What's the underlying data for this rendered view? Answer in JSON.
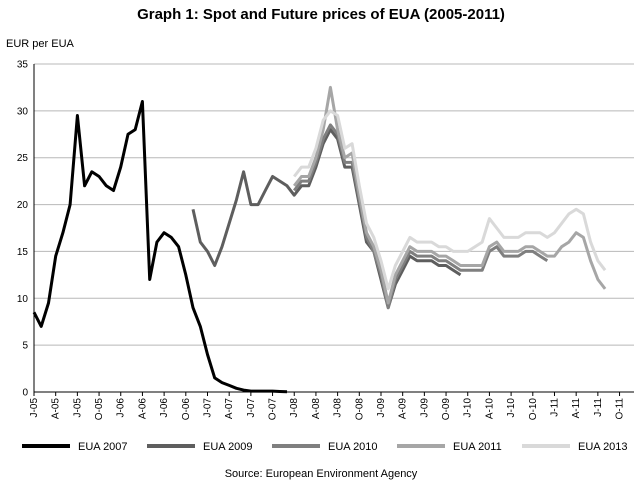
{
  "chart_data": {
    "type": "line",
    "title": "Graph 1: Spot and Future prices of EUA (2005-2011)",
    "ylabel": "EUR per EUA",
    "source": "Source: European Environment Agency",
    "ylim": [
      0,
      35
    ],
    "xlim": [
      "2005-01",
      "2011-12"
    ],
    "yticks": [
      0,
      5,
      10,
      15,
      20,
      25,
      30,
      35
    ],
    "xticks": [
      {
        "label": "J-05",
        "date": "2005-01"
      },
      {
        "label": "A-05",
        "date": "2005-04"
      },
      {
        "label": "J-05",
        "date": "2005-07"
      },
      {
        "label": "O-05",
        "date": "2005-10"
      },
      {
        "label": "J-06",
        "date": "2006-01"
      },
      {
        "label": "A-06",
        "date": "2006-04"
      },
      {
        "label": "J-06",
        "date": "2006-07"
      },
      {
        "label": "O-06",
        "date": "2006-10"
      },
      {
        "label": "J-07",
        "date": "2007-01"
      },
      {
        "label": "A-07",
        "date": "2007-04"
      },
      {
        "label": "J-07",
        "date": "2007-07"
      },
      {
        "label": "O-07",
        "date": "2007-10"
      },
      {
        "label": "J-08",
        "date": "2008-01"
      },
      {
        "label": "A-08",
        "date": "2008-04"
      },
      {
        "label": "J-08",
        "date": "2008-07"
      },
      {
        "label": "O-08",
        "date": "2008-10"
      },
      {
        "label": "J-09",
        "date": "2009-01"
      },
      {
        "label": "A-09",
        "date": "2009-04"
      },
      {
        "label": "J-09",
        "date": "2009-07"
      },
      {
        "label": "O-09",
        "date": "2009-10"
      },
      {
        "label": "J-10",
        "date": "2010-01"
      },
      {
        "label": "A-10",
        "date": "2010-04"
      },
      {
        "label": "J-10",
        "date": "2010-07"
      },
      {
        "label": "O-10",
        "date": "2010-10"
      },
      {
        "label": "J-11",
        "date": "2011-01"
      },
      {
        "label": "A-11",
        "date": "2011-04"
      },
      {
        "label": "J-11",
        "date": "2011-07"
      },
      {
        "label": "O-11",
        "date": "2011-10"
      }
    ],
    "grid": true,
    "legend_position": "bottom",
    "series": [
      {
        "name": "EUA 2007",
        "color": "#000000",
        "points": [
          [
            "2005-01",
            8.5
          ],
          [
            "2005-02",
            7.0
          ],
          [
            "2005-03",
            9.5
          ],
          [
            "2005-04",
            14.5
          ],
          [
            "2005-05",
            17.0
          ],
          [
            "2005-06",
            20.0
          ],
          [
            "2005-07",
            29.5
          ],
          [
            "2005-08",
            22.0
          ],
          [
            "2005-09",
            23.5
          ],
          [
            "2005-10",
            23.0
          ],
          [
            "2005-11",
            22.0
          ],
          [
            "2005-12",
            21.5
          ],
          [
            "2006-01",
            24.0
          ],
          [
            "2006-02",
            27.5
          ],
          [
            "2006-03",
            28.0
          ],
          [
            "2006-04",
            31.0
          ],
          [
            "2006-05",
            12.0
          ],
          [
            "2006-06",
            16.0
          ],
          [
            "2006-07",
            17.0
          ],
          [
            "2006-08",
            16.5
          ],
          [
            "2006-09",
            15.5
          ],
          [
            "2006-10",
            12.5
          ],
          [
            "2006-11",
            9.0
          ],
          [
            "2006-12",
            7.0
          ],
          [
            "2007-01",
            4.0
          ],
          [
            "2007-02",
            1.5
          ],
          [
            "2007-03",
            1.0
          ],
          [
            "2007-04",
            0.7
          ],
          [
            "2007-05",
            0.4
          ],
          [
            "2007-06",
            0.2
          ],
          [
            "2007-07",
            0.1
          ],
          [
            "2007-08",
            0.1
          ],
          [
            "2007-09",
            0.1
          ],
          [
            "2007-10",
            0.1
          ],
          [
            "2007-11",
            0.05
          ],
          [
            "2007-12",
            0.02
          ]
        ]
      },
      {
        "name": "EUA 2009",
        "color": "#5e5e5e",
        "points": [
          [
            "2006-11",
            19.5
          ],
          [
            "2006-12",
            16.0
          ],
          [
            "2007-01",
            15.0
          ],
          [
            "2007-02",
            13.5
          ],
          [
            "2007-03",
            15.5
          ],
          [
            "2007-04",
            18.0
          ],
          [
            "2007-05",
            20.5
          ],
          [
            "2007-06",
            23.5
          ],
          [
            "2007-07",
            20.0
          ],
          [
            "2007-08",
            20.0
          ],
          [
            "2007-09",
            21.5
          ],
          [
            "2007-10",
            23.0
          ],
          [
            "2007-11",
            22.5
          ],
          [
            "2007-12",
            22.0
          ],
          [
            "2008-01",
            21.0
          ],
          [
            "2008-02",
            22.0
          ],
          [
            "2008-03",
            22.0
          ],
          [
            "2008-04",
            24.0
          ],
          [
            "2008-05",
            26.5
          ],
          [
            "2008-06",
            28.0
          ],
          [
            "2008-07",
            27.0
          ],
          [
            "2008-08",
            24.0
          ],
          [
            "2008-09",
            24.0
          ],
          [
            "2008-10",
            20.0
          ],
          [
            "2008-11",
            16.0
          ],
          [
            "2008-12",
            15.0
          ],
          [
            "2009-01",
            12.0
          ],
          [
            "2009-02",
            9.0
          ],
          [
            "2009-03",
            11.5
          ],
          [
            "2009-04",
            13.0
          ],
          [
            "2009-05",
            14.5
          ],
          [
            "2009-06",
            14.0
          ],
          [
            "2009-07",
            14.0
          ],
          [
            "2009-08",
            14.0
          ],
          [
            "2009-09",
            13.5
          ],
          [
            "2009-10",
            13.5
          ],
          [
            "2009-11",
            13.0
          ],
          [
            "2009-12",
            12.5
          ]
        ]
      },
      {
        "name": "EUA 2010",
        "color": "#7f7f7f",
        "points": [
          [
            "2008-01",
            21.5
          ],
          [
            "2008-02",
            22.5
          ],
          [
            "2008-03",
            22.5
          ],
          [
            "2008-04",
            24.5
          ],
          [
            "2008-05",
            27.0
          ],
          [
            "2008-06",
            28.5
          ],
          [
            "2008-07",
            27.5
          ],
          [
            "2008-08",
            24.5
          ],
          [
            "2008-09",
            24.5
          ],
          [
            "2008-10",
            20.5
          ],
          [
            "2008-11",
            16.5
          ],
          [
            "2008-12",
            15.0
          ],
          [
            "2009-01",
            12.5
          ],
          [
            "2009-02",
            9.0
          ],
          [
            "2009-03",
            12.0
          ],
          [
            "2009-04",
            13.5
          ],
          [
            "2009-05",
            15.0
          ],
          [
            "2009-06",
            14.5
          ],
          [
            "2009-07",
            14.5
          ],
          [
            "2009-08",
            14.5
          ],
          [
            "2009-09",
            14.0
          ],
          [
            "2009-10",
            14.0
          ],
          [
            "2009-11",
            13.5
          ],
          [
            "2009-12",
            13.0
          ],
          [
            "2010-01",
            13.0
          ],
          [
            "2010-02",
            13.0
          ],
          [
            "2010-03",
            13.0
          ],
          [
            "2010-04",
            15.0
          ],
          [
            "2010-05",
            15.5
          ],
          [
            "2010-06",
            14.5
          ],
          [
            "2010-07",
            14.5
          ],
          [
            "2010-08",
            14.5
          ],
          [
            "2010-09",
            15.0
          ],
          [
            "2010-10",
            15.0
          ],
          [
            "2010-11",
            14.5
          ],
          [
            "2010-12",
            14.0
          ]
        ]
      },
      {
        "name": "EUA 2011",
        "color": "#a6a6a6",
        "points": [
          [
            "2008-01",
            22.0
          ],
          [
            "2008-02",
            23.0
          ],
          [
            "2008-03",
            23.0
          ],
          [
            "2008-04",
            25.0
          ],
          [
            "2008-05",
            28.0
          ],
          [
            "2008-06",
            32.5
          ],
          [
            "2008-07",
            28.0
          ],
          [
            "2008-08",
            25.0
          ],
          [
            "2008-09",
            25.5
          ],
          [
            "2008-10",
            21.0
          ],
          [
            "2008-11",
            17.0
          ],
          [
            "2008-12",
            15.5
          ],
          [
            "2009-01",
            13.0
          ],
          [
            "2009-02",
            9.5
          ],
          [
            "2009-03",
            12.5
          ],
          [
            "2009-04",
            14.0
          ],
          [
            "2009-05",
            15.5
          ],
          [
            "2009-06",
            15.0
          ],
          [
            "2009-07",
            15.0
          ],
          [
            "2009-08",
            15.0
          ],
          [
            "2009-09",
            14.5
          ],
          [
            "2009-10",
            14.5
          ],
          [
            "2009-11",
            14.0
          ],
          [
            "2009-12",
            13.5
          ],
          [
            "2010-01",
            13.5
          ],
          [
            "2010-02",
            13.5
          ],
          [
            "2010-03",
            13.5
          ],
          [
            "2010-04",
            15.5
          ],
          [
            "2010-05",
            16.0
          ],
          [
            "2010-06",
            15.0
          ],
          [
            "2010-07",
            15.0
          ],
          [
            "2010-08",
            15.0
          ],
          [
            "2010-09",
            15.5
          ],
          [
            "2010-10",
            15.5
          ],
          [
            "2010-11",
            15.0
          ],
          [
            "2010-12",
            14.5
          ],
          [
            "2011-01",
            14.5
          ],
          [
            "2011-02",
            15.5
          ],
          [
            "2011-03",
            16.0
          ],
          [
            "2011-04",
            17.0
          ],
          [
            "2011-05",
            16.5
          ],
          [
            "2011-06",
            14.0
          ],
          [
            "2011-07",
            12.0
          ],
          [
            "2011-08",
            11.0
          ]
        ]
      },
      {
        "name": "EUA 2013",
        "color": "#d9d9d9",
        "points": [
          [
            "2008-01",
            23.0
          ],
          [
            "2008-02",
            24.0
          ],
          [
            "2008-03",
            24.0
          ],
          [
            "2008-04",
            26.0
          ],
          [
            "2008-05",
            29.0
          ],
          [
            "2008-06",
            30.0
          ],
          [
            "2008-07",
            29.5
          ],
          [
            "2008-08",
            26.0
          ],
          [
            "2008-09",
            26.5
          ],
          [
            "2008-10",
            22.0
          ],
          [
            "2008-11",
            18.0
          ],
          [
            "2008-12",
            16.5
          ],
          [
            "2009-01",
            14.0
          ],
          [
            "2009-02",
            11.0
          ],
          [
            "2009-03",
            13.5
          ],
          [
            "2009-04",
            15.0
          ],
          [
            "2009-05",
            16.5
          ],
          [
            "2009-06",
            16.0
          ],
          [
            "2009-07",
            16.0
          ],
          [
            "2009-08",
            16.0
          ],
          [
            "2009-09",
            15.5
          ],
          [
            "2009-10",
            15.5
          ],
          [
            "2009-11",
            15.0
          ],
          [
            "2009-12",
            15.0
          ],
          [
            "2010-01",
            15.0
          ],
          [
            "2010-02",
            15.5
          ],
          [
            "2010-03",
            16.0
          ],
          [
            "2010-04",
            18.5
          ],
          [
            "2010-05",
            17.5
          ],
          [
            "2010-06",
            16.5
          ],
          [
            "2010-07",
            16.5
          ],
          [
            "2010-08",
            16.5
          ],
          [
            "2010-09",
            17.0
          ],
          [
            "2010-10",
            17.0
          ],
          [
            "2010-11",
            17.0
          ],
          [
            "2010-12",
            16.5
          ],
          [
            "2011-01",
            17.0
          ],
          [
            "2011-02",
            18.0
          ],
          [
            "2011-03",
            19.0
          ],
          [
            "2011-04",
            19.5
          ],
          [
            "2011-05",
            19.0
          ],
          [
            "2011-06",
            16.0
          ],
          [
            "2011-07",
            14.0
          ],
          [
            "2011-08",
            13.0
          ]
        ]
      }
    ]
  }
}
